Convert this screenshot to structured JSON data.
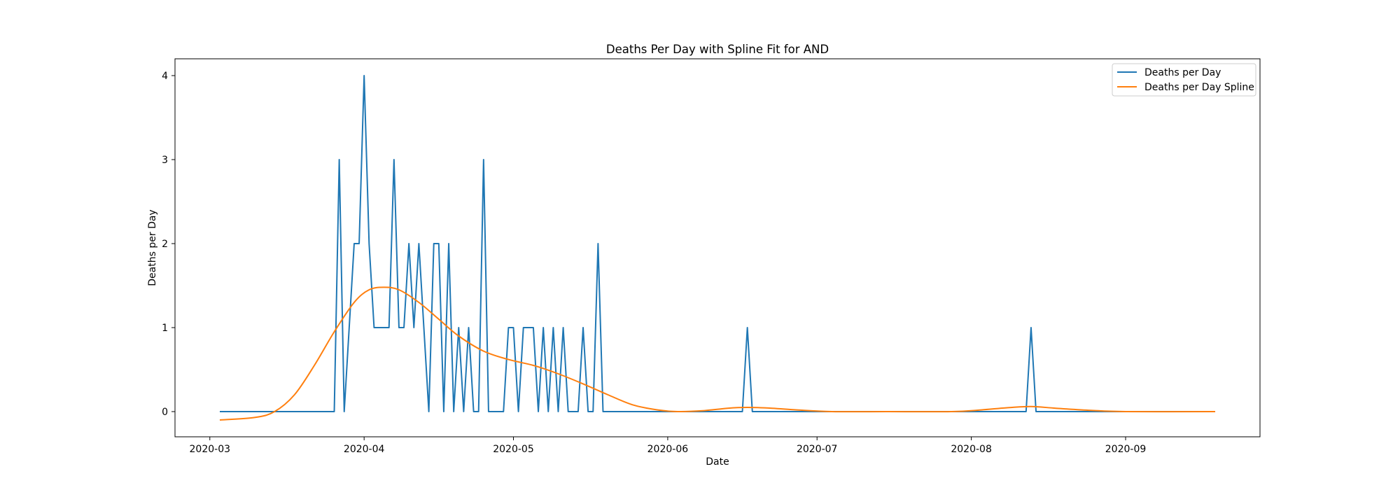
{
  "chart_data": {
    "type": "line",
    "title": "Deaths Per Day with Spline Fit for AND",
    "xlabel": "Date",
    "ylabel": "Deaths per Day",
    "x_start": "2020-03-03",
    "x_end": "2020-09-19",
    "xlim": [
      "2020-02-23",
      "2020-09-28"
    ],
    "ylim": [
      -0.3,
      4.2
    ],
    "grid": false,
    "legend_position": "upper right",
    "x_ticks": [
      {
        "date": "2020-03-01",
        "label": "2020-03"
      },
      {
        "date": "2020-04-01",
        "label": "2020-04"
      },
      {
        "date": "2020-05-01",
        "label": "2020-05"
      },
      {
        "date": "2020-06-01",
        "label": "2020-06"
      },
      {
        "date": "2020-07-01",
        "label": "2020-07"
      },
      {
        "date": "2020-08-01",
        "label": "2020-08"
      },
      {
        "date": "2020-09-01",
        "label": "2020-09"
      }
    ],
    "y_ticks": [
      {
        "value": 0,
        "label": "0"
      },
      {
        "value": 1,
        "label": "1"
      },
      {
        "value": 2,
        "label": "2"
      },
      {
        "value": 3,
        "label": "3"
      },
      {
        "value": 4,
        "label": "4"
      }
    ],
    "series": [
      {
        "name": "Deaths per Day",
        "color": "#1f77b4",
        "nonzero_days": {
          "2020-03-27": 3,
          "2020-03-29": 1,
          "2020-03-30": 2,
          "2020-03-31": 2,
          "2020-04-01": 4,
          "2020-04-02": 2,
          "2020-04-03": 1,
          "2020-04-04": 1,
          "2020-04-05": 1,
          "2020-04-06": 1,
          "2020-04-07": 3,
          "2020-04-08": 1,
          "2020-04-09": 1,
          "2020-04-10": 2,
          "2020-04-11": 1,
          "2020-04-12": 2,
          "2020-04-13": 1,
          "2020-04-15": 2,
          "2020-04-16": 2,
          "2020-04-18": 2,
          "2020-04-20": 1,
          "2020-04-22": 1,
          "2020-04-25": 3,
          "2020-04-30": 1,
          "2020-05-01": 1,
          "2020-05-03": 1,
          "2020-05-04": 1,
          "2020-05-05": 1,
          "2020-05-07": 1,
          "2020-05-09": 1,
          "2020-05-11": 1,
          "2020-05-15": 1,
          "2020-05-18": 2,
          "2020-06-17": 1,
          "2020-08-13": 1
        }
      },
      {
        "name": "Deaths per Day Spline",
        "color": "#ff7f0e",
        "knots": [
          [
            "2020-03-03",
            -0.1
          ],
          [
            "2020-03-10",
            -0.07
          ],
          [
            "2020-03-14",
            0.0
          ],
          [
            "2020-03-18",
            0.2
          ],
          [
            "2020-03-22",
            0.55
          ],
          [
            "2020-03-26",
            0.95
          ],
          [
            "2020-03-30",
            1.3
          ],
          [
            "2020-04-02",
            1.45
          ],
          [
            "2020-04-05",
            1.48
          ],
          [
            "2020-04-08",
            1.45
          ],
          [
            "2020-04-12",
            1.3
          ],
          [
            "2020-04-16",
            1.1
          ],
          [
            "2020-04-20",
            0.9
          ],
          [
            "2020-04-25",
            0.72
          ],
          [
            "2020-04-30",
            0.62
          ],
          [
            "2020-05-05",
            0.55
          ],
          [
            "2020-05-10",
            0.45
          ],
          [
            "2020-05-15",
            0.33
          ],
          [
            "2020-05-20",
            0.2
          ],
          [
            "2020-05-25",
            0.08
          ],
          [
            "2020-05-30",
            0.02
          ],
          [
            "2020-06-03",
            0.0
          ],
          [
            "2020-06-08",
            0.01
          ],
          [
            "2020-06-13",
            0.04
          ],
          [
            "2020-06-17",
            0.05
          ],
          [
            "2020-06-22",
            0.04
          ],
          [
            "2020-06-27",
            0.02
          ],
          [
            "2020-07-04",
            0.0
          ],
          [
            "2020-07-15",
            0.0
          ],
          [
            "2020-07-28",
            0.0
          ],
          [
            "2020-08-03",
            0.02
          ],
          [
            "2020-08-08",
            0.045
          ],
          [
            "2020-08-13",
            0.06
          ],
          [
            "2020-08-18",
            0.04
          ],
          [
            "2020-08-25",
            0.015
          ],
          [
            "2020-09-01",
            0.0
          ],
          [
            "2020-09-19",
            0.0
          ]
        ]
      }
    ]
  }
}
